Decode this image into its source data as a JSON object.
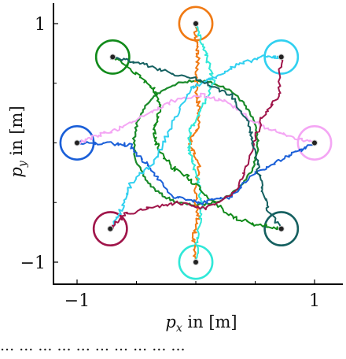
{
  "chart_data": {
    "type": "line",
    "xlabel_var": "p",
    "xlabel_sub": "x",
    "xlabel_unit": " in [m]",
    "ylabel_var": "p",
    "ylabel_sub": "y",
    "ylabel_unit": " in [m]",
    "xlim": [
      -1.1,
      1.1
    ],
    "ylim": [
      -1.2,
      1.12
    ],
    "xticks": [
      {
        "value": -1,
        "label": "−1"
      },
      {
        "value": 1,
        "label": "1"
      }
    ],
    "yticks": [
      {
        "value": 1,
        "label": "1"
      },
      {
        "value": -1,
        "label": "−1"
      }
    ],
    "minor_xticks": [
      -0.5,
      0,
      0.5
    ],
    "minor_yticks": [
      0.5,
      0,
      -0.5
    ],
    "grid": false,
    "legend": "none",
    "central_circle": {
      "cx": 0.0,
      "cy": 0.0,
      "r": 0.52,
      "color": "#1a8a2a"
    },
    "goal_radius": 0.14,
    "series": [
      {
        "color": "#f07a14",
        "goal": [
          0.0,
          1.0
        ],
        "path": [
          [
            0.0,
            -1.0
          ],
          [
            -0.02,
            -0.8
          ],
          [
            0.02,
            -0.6
          ],
          [
            -0.01,
            -0.4
          ],
          [
            0.03,
            -0.2
          ],
          [
            -0.05,
            0.0
          ],
          [
            0.03,
            0.15
          ],
          [
            0.02,
            0.35
          ],
          [
            0.0,
            0.5
          ],
          [
            0.02,
            0.7
          ],
          [
            0.0,
            0.85
          ],
          [
            0.0,
            1.0
          ]
        ]
      },
      {
        "color": "#30e8d8",
        "goal": [
          0.0,
          -1.0
        ],
        "path": [
          [
            0.0,
            1.0
          ],
          [
            0.05,
            0.85
          ],
          [
            0.1,
            0.7
          ],
          [
            0.15,
            0.5
          ],
          [
            0.05,
            0.3
          ],
          [
            -0.05,
            0.1
          ],
          [
            -0.05,
            -0.1
          ],
          [
            0.02,
            -0.3
          ],
          [
            0.05,
            -0.5
          ],
          [
            0.02,
            -0.75
          ],
          [
            0.0,
            -1.0
          ]
        ]
      },
      {
        "color": "#118a1a",
        "goal": [
          -0.7,
          0.72
        ],
        "path": [
          [
            0.72,
            -0.72
          ],
          [
            0.5,
            -0.68
          ],
          [
            0.3,
            -0.62
          ],
          [
            0.1,
            -0.45
          ],
          [
            -0.05,
            -0.3
          ],
          [
            -0.2,
            -0.2
          ],
          [
            -0.32,
            -0.05
          ],
          [
            -0.35,
            0.1
          ],
          [
            -0.3,
            0.3
          ],
          [
            -0.35,
            0.45
          ],
          [
            -0.5,
            0.58
          ],
          [
            -0.7,
            0.72
          ]
        ]
      },
      {
        "color": "#1a5fd8",
        "goal": [
          -1.0,
          0.0
        ],
        "path": [
          [
            1.0,
            0.0
          ],
          [
            0.85,
            -0.08
          ],
          [
            0.7,
            -0.15
          ],
          [
            0.5,
            -0.25
          ],
          [
            0.3,
            -0.45
          ],
          [
            0.05,
            -0.5
          ],
          [
            -0.2,
            -0.45
          ],
          [
            -0.4,
            -0.2
          ],
          [
            -0.55,
            -0.02
          ],
          [
            -0.75,
            0.0
          ],
          [
            -1.0,
            0.0
          ]
        ]
      },
      {
        "color": "#f4a6f4",
        "goal": [
          1.0,
          0.0
        ],
        "path": [
          [
            -1.0,
            0.0
          ],
          [
            -0.85,
            0.05
          ],
          [
            -0.65,
            0.12
          ],
          [
            -0.4,
            0.25
          ],
          [
            -0.2,
            0.35
          ],
          [
            0.05,
            0.4
          ],
          [
            0.25,
            0.35
          ],
          [
            0.45,
            0.2
          ],
          [
            0.6,
            0.12
          ],
          [
            0.8,
            0.05
          ],
          [
            1.0,
            0.0
          ]
        ]
      },
      {
        "color": "#30d0f0",
        "goal": [
          0.72,
          0.72
        ],
        "path": [
          [
            -0.72,
            -0.72
          ],
          [
            -0.62,
            -0.55
          ],
          [
            -0.55,
            -0.35
          ],
          [
            -0.35,
            -0.15
          ],
          [
            -0.2,
            0.15
          ],
          [
            -0.05,
            0.45
          ],
          [
            0.15,
            0.55
          ],
          [
            0.35,
            0.65
          ],
          [
            0.55,
            0.72
          ],
          [
            0.72,
            0.72
          ]
        ]
      },
      {
        "color": "#a0154a",
        "goal": [
          -0.72,
          -0.72
        ],
        "path": [
          [
            0.72,
            0.72
          ],
          [
            0.7,
            0.4
          ],
          [
            0.55,
            0.2
          ],
          [
            0.45,
            -0.15
          ],
          [
            0.35,
            -0.4
          ],
          [
            0.1,
            -0.55
          ],
          [
            -0.15,
            -0.5
          ],
          [
            -0.4,
            -0.55
          ],
          [
            -0.6,
            -0.6
          ],
          [
            -0.72,
            -0.72
          ]
        ]
      },
      {
        "color": "#156060",
        "goal": [
          0.72,
          -0.72
        ],
        "path": [
          [
            -0.72,
            0.72
          ],
          [
            -0.5,
            0.68
          ],
          [
            -0.25,
            0.6
          ],
          [
            0.05,
            0.52
          ],
          [
            0.3,
            0.4
          ],
          [
            0.45,
            0.15
          ],
          [
            0.5,
            -0.1
          ],
          [
            0.55,
            -0.35
          ],
          [
            0.6,
            -0.55
          ],
          [
            0.72,
            -0.72
          ]
        ]
      }
    ]
  },
  "caption": "... ... ... ... ... ... ... ... ... ..."
}
